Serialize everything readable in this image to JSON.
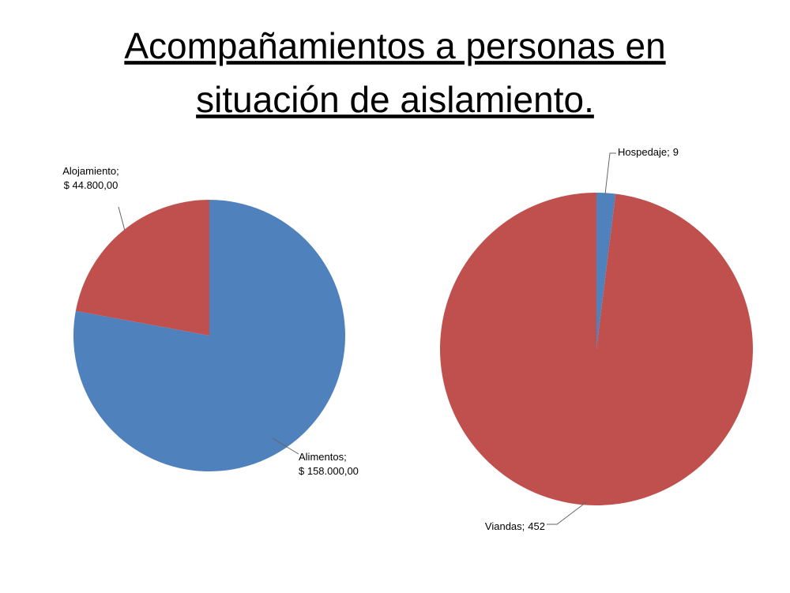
{
  "title": [
    "Acompañamientos a personas en",
    "situación de aislamiento."
  ],
  "chart_data": [
    {
      "type": "pie",
      "categories": [
        "Alimentos",
        "Alojamiento"
      ],
      "values": [
        158000,
        44800
      ],
      "value_labels": [
        "$ 158.000,00",
        "$ 44.800,00"
      ],
      "label_separator": ";",
      "colors": [
        "#4f81bd",
        "#c0504d"
      ]
    },
    {
      "type": "pie",
      "categories": [
        "Hospedaje",
        "Viandas"
      ],
      "values": [
        9,
        452
      ],
      "value_labels": [
        "9",
        "452"
      ],
      "label_separator": ";",
      "colors": [
        "#4f81bd",
        "#c0504d"
      ]
    }
  ]
}
